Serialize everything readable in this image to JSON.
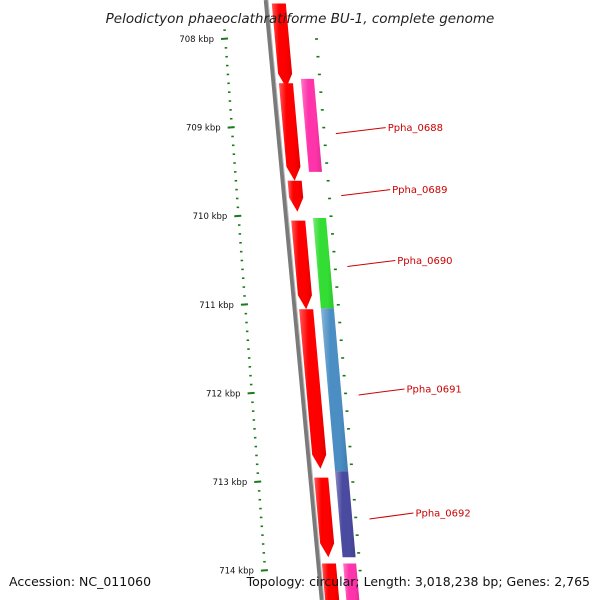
{
  "header": {
    "title": "Pelodictyon phaeoclathratiforme BU-1, complete genome"
  },
  "footer": {
    "accession": "Accession: NC_011060",
    "topology": "Topology: circular; Length: 3,018,238 bp; Genes: 2,765"
  },
  "colors": {
    "backbone": "#7a7a7a",
    "forward_strand": "#ff0000",
    "tick": "#1a7a1a",
    "label_line": "#cc0000",
    "cog_pink": "#ff33aa",
    "cog_green": "#33dd33",
    "cog_blue": "#4a8ec4",
    "cog_purple": "#4a4aa0"
  },
  "axis": {
    "unit": "kbp",
    "ticks": [
      {
        "kbp": 708,
        "label": "708 kbp"
      },
      {
        "kbp": 709,
        "label": "709 kbp"
      },
      {
        "kbp": 710,
        "label": "710 kbp"
      },
      {
        "kbp": 711,
        "label": "711 kbp"
      },
      {
        "kbp": 712,
        "label": "712 kbp"
      },
      {
        "kbp": 713,
        "label": "713 kbp"
      },
      {
        "kbp": 714,
        "label": "714 kbp"
      }
    ]
  },
  "strand_features": [
    {
      "strand": "forward",
      "start_kbp": 707.6,
      "end_kbp": 708.55,
      "color_key": "forward_strand"
    },
    {
      "strand": "forward",
      "start_kbp": 708.5,
      "end_kbp": 709.6,
      "color_key": "forward_strand"
    },
    {
      "strand": "forward",
      "start_kbp": 709.6,
      "end_kbp": 709.95,
      "color_key": "forward_strand"
    },
    {
      "strand": "forward",
      "start_kbp": 710.05,
      "end_kbp": 711.05,
      "color_key": "forward_strand"
    },
    {
      "strand": "forward",
      "start_kbp": 711.05,
      "end_kbp": 712.85,
      "color_key": "forward_strand"
    },
    {
      "strand": "forward",
      "start_kbp": 712.95,
      "end_kbp": 713.85,
      "color_key": "forward_strand"
    },
    {
      "strand": "forward",
      "start_kbp": 713.92,
      "end_kbp": 714.4,
      "color_key": "forward_strand"
    }
  ],
  "cog_features": [
    {
      "start_kbp": 708.45,
      "end_kbp": 709.5,
      "color_key": "cog_pink"
    },
    {
      "start_kbp": 710.02,
      "end_kbp": 711.04,
      "color_key": "cog_green"
    },
    {
      "start_kbp": 711.04,
      "end_kbp": 712.88,
      "color_key": "cog_blue"
    },
    {
      "start_kbp": 712.88,
      "end_kbp": 713.85,
      "color_key": "cog_purple"
    },
    {
      "start_kbp": 713.92,
      "end_kbp": 714.4,
      "color_key": "cog_pink"
    }
  ],
  "gene_labels": [
    {
      "name": "Ppha_0688",
      "kbp": 709.0
    },
    {
      "name": "Ppha_0689",
      "kbp": 709.7
    },
    {
      "name": "Ppha_0690",
      "kbp": 710.5
    },
    {
      "name": "Ppha_0691",
      "kbp": 711.95
    },
    {
      "name": "Ppha_0692",
      "kbp": 713.35
    }
  ]
}
